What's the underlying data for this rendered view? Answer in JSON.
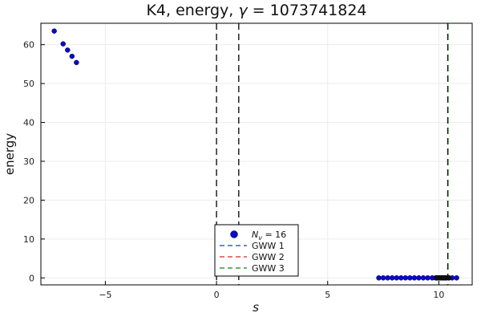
{
  "chart_data": {
    "type": "scatter",
    "title": "K4, energy, γ = 1073741824",
    "xlabel": "s",
    "ylabel": "energy",
    "xlim": [
      -7.9,
      11.5
    ],
    "ylim": [
      -1.8,
      65.5
    ],
    "xticks": [
      -5,
      0,
      5,
      10
    ],
    "yticks": [
      0,
      10,
      20,
      30,
      40,
      50,
      60
    ],
    "xtick_labels": [
      "−5",
      "0",
      "5",
      "10"
    ],
    "ytick_labels": [
      "0",
      "10",
      "20",
      "30",
      "40",
      "50",
      "60"
    ],
    "grid": true,
    "legend_position": "bottom-center",
    "series": [
      {
        "name": "N_v = 16",
        "kind": "scatter",
        "color": "#0a0ac8",
        "points": [
          [
            -7.3,
            63.5
          ],
          [
            -6.9,
            60.2
          ],
          [
            -6.7,
            58.6
          ],
          [
            -6.5,
            57.0
          ],
          [
            -6.3,
            55.4
          ],
          [
            7.3,
            0
          ],
          [
            7.5,
            0
          ],
          [
            7.7,
            0
          ],
          [
            7.9,
            0
          ],
          [
            8.1,
            0
          ],
          [
            8.3,
            0
          ],
          [
            8.5,
            0
          ],
          [
            8.7,
            0
          ],
          [
            8.9,
            0
          ],
          [
            9.1,
            0
          ],
          [
            9.3,
            0
          ],
          [
            9.5,
            0
          ],
          [
            9.7,
            0
          ],
          [
            9.85,
            0
          ],
          [
            9.95,
            0
          ],
          [
            10.05,
            0
          ],
          [
            10.15,
            0
          ],
          [
            10.25,
            0
          ],
          [
            10.35,
            0
          ],
          [
            10.45,
            0
          ],
          [
            10.6,
            0
          ],
          [
            10.8,
            0
          ]
        ]
      },
      {
        "name": "GWW 1",
        "kind": "vline",
        "color": "#3c5fd6",
        "values": []
      },
      {
        "name": "GWW 2",
        "kind": "vline",
        "color": "#e04a4a",
        "values": []
      },
      {
        "name": "GWW 3",
        "kind": "vline",
        "color": "#3a9a3a",
        "values": []
      }
    ],
    "reference_lines": {
      "color": "#000000",
      "style": "dashed",
      "x": [
        0,
        1,
        10.4
      ]
    },
    "black_points": [
      [
        9.9,
        0
      ],
      [
        10.0,
        0
      ],
      [
        10.1,
        0
      ],
      [
        10.2,
        0
      ],
      [
        10.3,
        0
      ],
      [
        10.45,
        0
      ]
    ]
  }
}
